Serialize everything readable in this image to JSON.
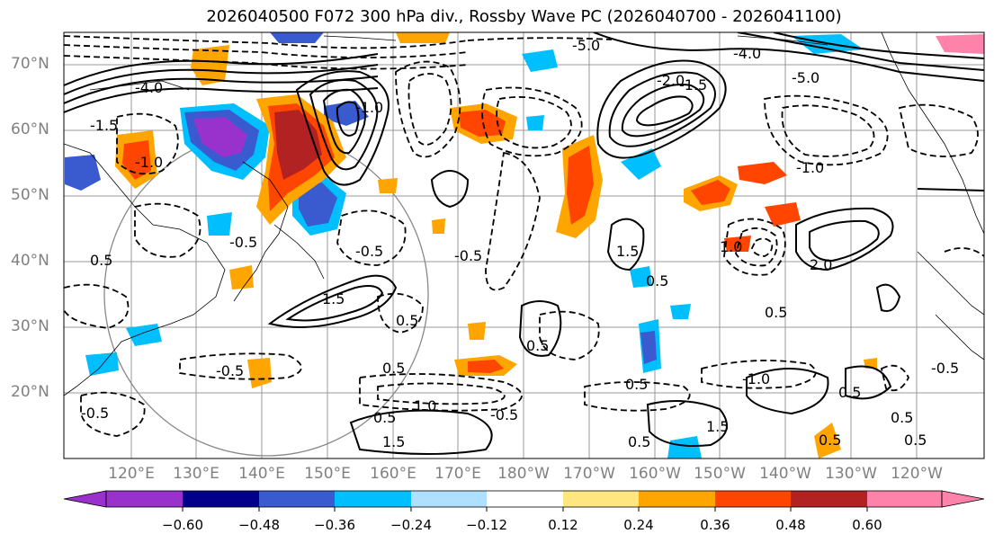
{
  "title": "2026040500 F072 300 hPa div., Rossby Wave PC (2026040700 - 2026041100)",
  "lat_labels": [
    "70°N",
    "60°N",
    "50°N",
    "40°N",
    "30°N",
    "20°N"
  ],
  "lon_labels": [
    "120°E",
    "130°E",
    "140°E",
    "150°E",
    "160°E",
    "170°E",
    "180°W",
    "170°W",
    "160°W",
    "150°W",
    "140°W",
    "130°W",
    "120°W"
  ],
  "contour_labels": [
    "-5.0",
    "-4.0",
    "-2.0",
    "-1.5",
    "-1.0",
    "-0.5",
    "0.5",
    "1.0",
    "1.5",
    "2.0"
  ],
  "colorbar": {
    "ticks": [
      "−0.60",
      "−0.48",
      "−0.36",
      "−0.24",
      "−0.12",
      "0.12",
      "0.24",
      "0.36",
      "0.48",
      "0.60"
    ],
    "colors": [
      "#9932cc",
      "#00008b",
      "#3a5bd0",
      "#00bfff",
      "#b0e0ff",
      "#ffffff",
      "#ffe680",
      "#ffa500",
      "#ff4500",
      "#b22222",
      "#ff82ab"
    ]
  }
}
